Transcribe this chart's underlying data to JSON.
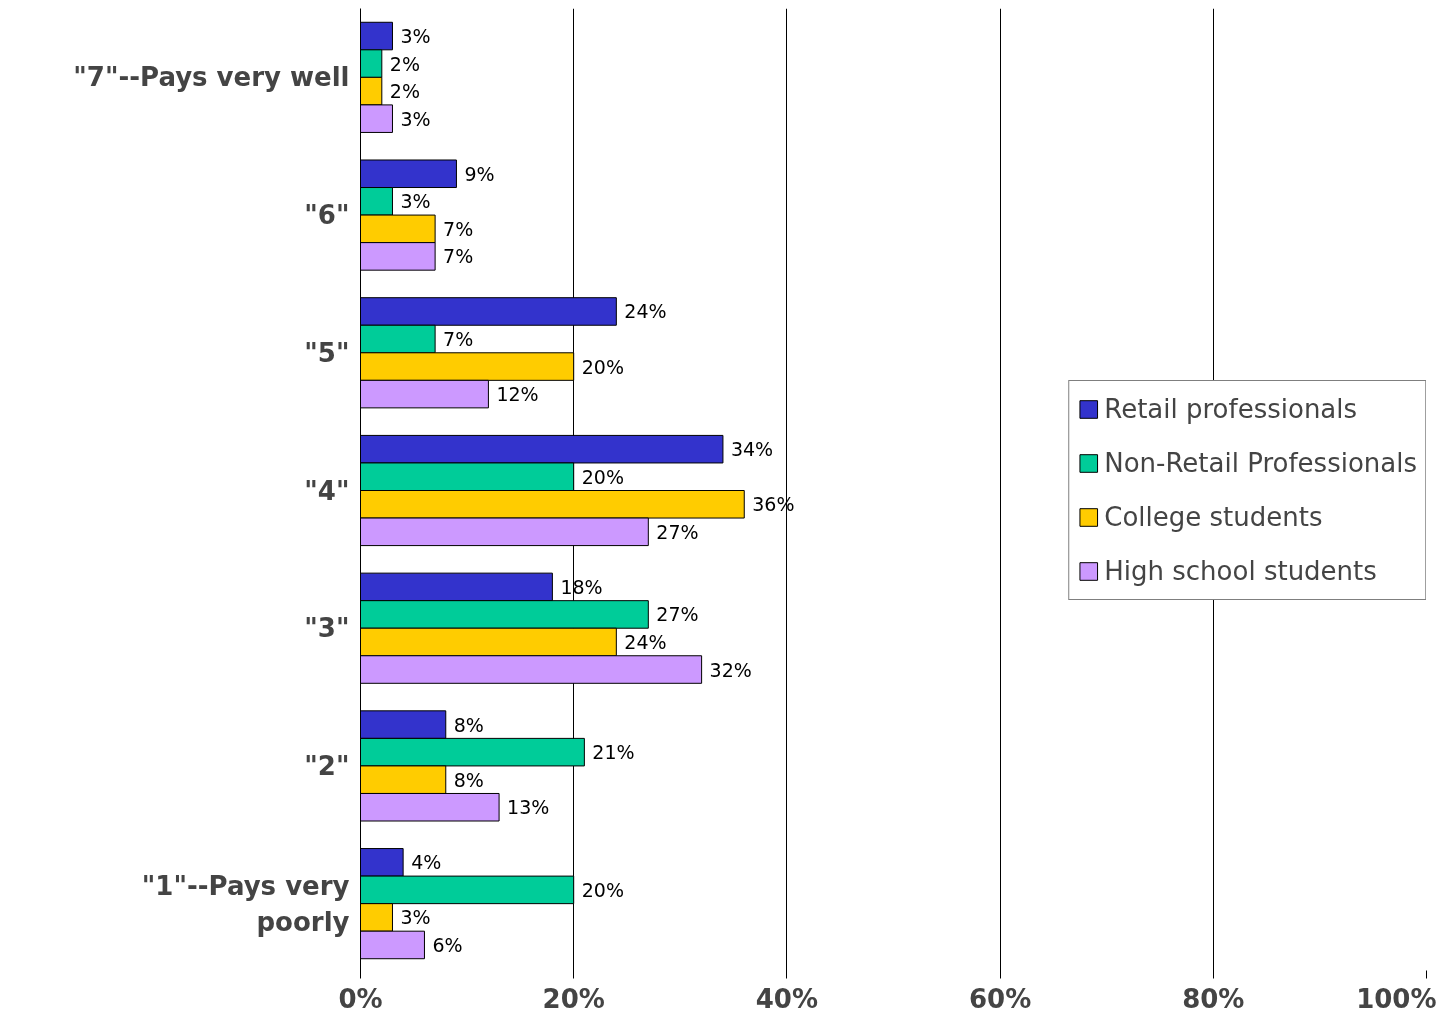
{
  "chart_data": {
    "type": "bar",
    "orientation": "horizontal",
    "categories": [
      "\"7\"--Pays very well",
      "\"6\"",
      "\"5\"",
      "\"4\"",
      "\"3\"",
      "\"2\"",
      "\"1\"--Pays very poorly"
    ],
    "series": [
      {
        "name": "Retail professionals",
        "color": "#3333cc",
        "values": [
          3,
          9,
          24,
          34,
          18,
          8,
          4
        ],
        "value_labels": [
          "3%",
          "9%",
          "24%",
          "34%",
          "18%",
          "8%",
          "4%"
        ]
      },
      {
        "name": "Non-Retail Professionals",
        "color": "#00cc99",
        "values": [
          2,
          3,
          7,
          20,
          27,
          21,
          20
        ],
        "value_labels": [
          "2%",
          "3%",
          "7%",
          "20%",
          "27%",
          "21%",
          "20%"
        ]
      },
      {
        "name": "College students",
        "color": "#ffcc00",
        "values": [
          2,
          7,
          20,
          36,
          24,
          8,
          3
        ],
        "value_labels": [
          "2%",
          "7%",
          "20%",
          "36%",
          "24%",
          "8%",
          "3%"
        ]
      },
      {
        "name": "High school students",
        "color": "#cc99ff",
        "values": [
          3,
          7,
          12,
          27,
          32,
          13,
          6
        ],
        "value_labels": [
          "3%",
          "7%",
          "12%",
          "27%",
          "32%",
          "13%",
          "6%"
        ]
      }
    ],
    "xlim": [
      0,
      100
    ],
    "xticks": [
      {
        "value": 0,
        "label": "0%"
      },
      {
        "value": 20,
        "label": "20%"
      },
      {
        "value": 40,
        "label": "40%"
      },
      {
        "value": 60,
        "label": "60%"
      },
      {
        "value": 80,
        "label": "80%"
      },
      {
        "value": 100,
        "label": "100%"
      }
    ],
    "grid": "x",
    "legend": "right"
  }
}
